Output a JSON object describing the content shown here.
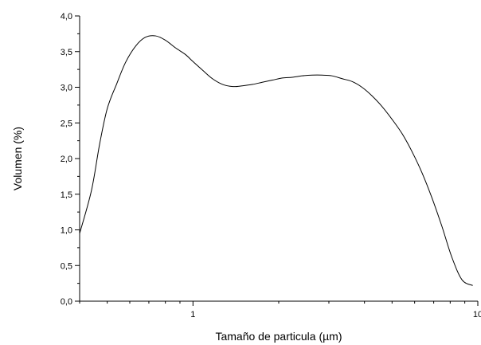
{
  "chart_data": {
    "type": "line",
    "xlabel": "Tamaño de particula (µm)",
    "ylabel": "Volumen (%)",
    "x_scale": "log",
    "xlim": [
      0.4,
      10
    ],
    "ylim": [
      0,
      4
    ],
    "grid": false,
    "y_ticks": [
      "0,0",
      "0,5",
      "1,0",
      "1,5",
      "2,0",
      "2,5",
      "3,0",
      "3,5",
      "4,0"
    ],
    "x_ticks": [
      {
        "value": 1,
        "label": "1"
      },
      {
        "value": 10,
        "label": "10"
      }
    ],
    "series": [
      {
        "color": "#000000",
        "x": [
          0.4,
          0.44,
          0.47,
          0.5,
          0.54,
          0.58,
          0.63,
          0.68,
          0.74,
          0.8,
          0.87,
          0.94,
          1.0,
          1.08,
          1.17,
          1.27,
          1.38,
          1.49,
          1.62,
          1.75,
          1.9,
          2.06,
          2.23,
          2.42,
          2.62,
          2.84,
          3.08,
          3.34,
          3.62,
          3.92,
          4.25,
          4.61,
          5.0,
          5.42,
          5.87,
          6.37,
          6.9,
          7.48,
          8.1,
          8.8,
          9.6
        ],
        "y": [
          0.95,
          1.55,
          2.2,
          2.7,
          3.05,
          3.35,
          3.58,
          3.7,
          3.72,
          3.66,
          3.55,
          3.46,
          3.36,
          3.24,
          3.12,
          3.04,
          3.01,
          3.02,
          3.04,
          3.07,
          3.1,
          3.13,
          3.14,
          3.16,
          3.17,
          3.17,
          3.16,
          3.12,
          3.08,
          3.0,
          2.88,
          2.73,
          2.55,
          2.35,
          2.1,
          1.8,
          1.45,
          1.05,
          0.62,
          0.3,
          0.22
        ]
      }
    ]
  }
}
